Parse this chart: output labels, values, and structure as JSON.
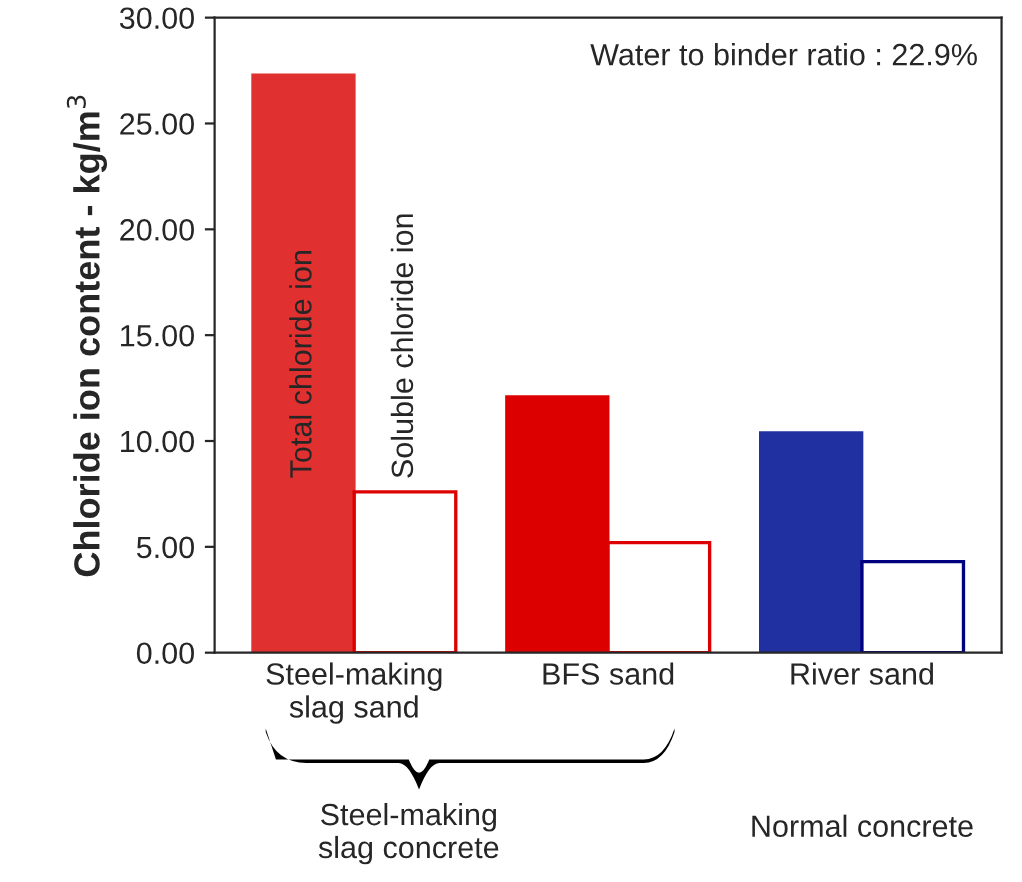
{
  "chart_data": {
    "type": "bar",
    "ylabel": "Chloride ion content - kg/m$^{3}$",
    "categories": [
      "Steel-making\nslag sand",
      "BFS sand",
      "River sand"
    ],
    "series": [
      {
        "name": "Total chloride ion",
        "colors": [
          "#e03030",
          "#dd0000",
          "#2030a0"
        ],
        "values": [
          27.3,
          12.1,
          10.4
        ]
      },
      {
        "name": "Soluble chloride ion",
        "colors": [
          "#dd0000",
          "#dd0000",
          "#000080"
        ],
        "values": [
          7.6,
          5.2,
          4.3
        ]
      }
    ],
    "ylim": [
      0,
      30
    ],
    "yticks": [
      {
        "value": 0,
        "label": "0.00"
      },
      {
        "value": 5,
        "label": "5.00"
      },
      {
        "value": 10,
        "label": "10.00"
      },
      {
        "value": 15,
        "label": "15.00"
      },
      {
        "value": 20,
        "label": "20.00"
      },
      {
        "value": 25,
        "label": "25.00"
      },
      {
        "value": 30,
        "label": "30.00"
      }
    ],
    "grid": false,
    "legend": false,
    "annotations": [
      "Water to binder ratio : 22.9%",
      "Steel-making\nslag concrete",
      "Normal concrete"
    ]
  }
}
